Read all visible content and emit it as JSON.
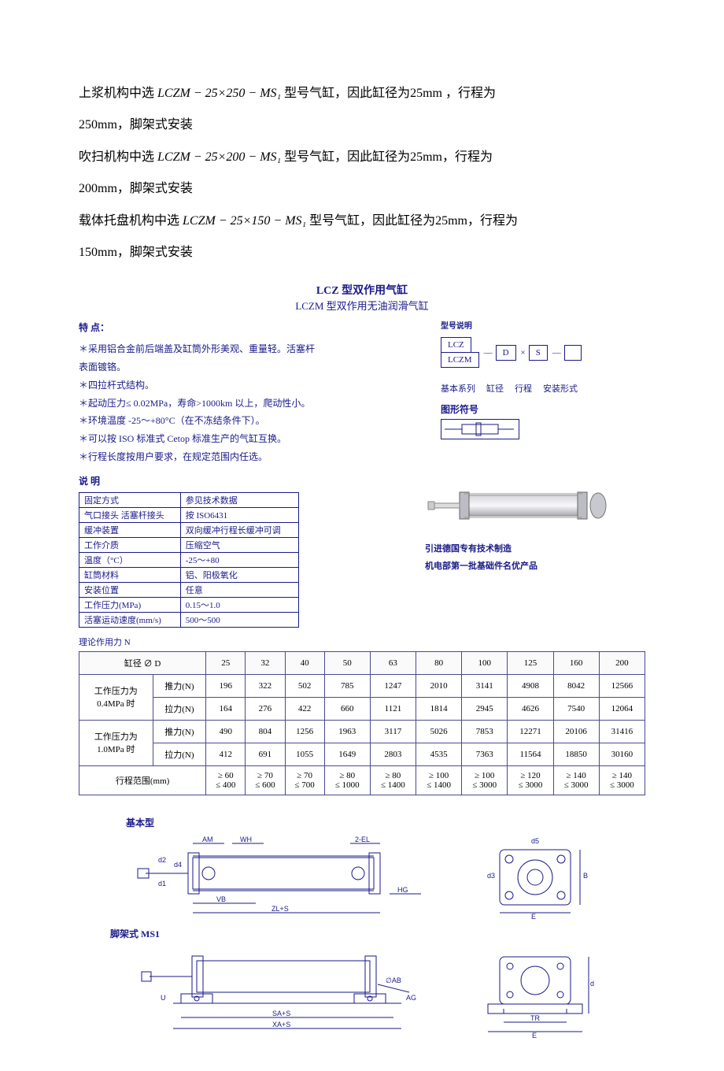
{
  "intro": {
    "line1_pre": "上浆机构中选 ",
    "line1_model": "LCZM − 25×250 − MS₁",
    "line1_post": " 型号气缸，因此缸径为25mm ，行程为",
    "line1b": "250mm，脚架式安装",
    "line2_pre": "吹扫机构中选 ",
    "line2_model": "LCZM − 25×200 − MS₁",
    "line2_post": " 型号气缸，因此缸径为25mm，行程为",
    "line2b": "200mm，脚架式安装",
    "line3_pre": "载体托盘机构中选 ",
    "line3_model": "LCZM − 25×150 − MS₁",
    "line3_post": " 型号气缸，因此缸径为25mm，行程为",
    "line3b": "150mm，脚架式安装"
  },
  "section": {
    "title1": "LCZ 型双作用气缸",
    "title2": "LCZM 型双作用无油润滑气缸"
  },
  "features": {
    "header": "特 点：",
    "items": [
      "＊采用铝合金前后端盖及缸筒外形美观、重量轻。活塞杆",
      "表面镀铬。",
      "＊四拉杆式结构。",
      "＊起动压力≤ 0.02MPa，寿命>1000km 以上，爬动性小。",
      "＊环境温度 -25～+80°C（在不冻结条件下）。",
      "＊可以按 ISO 标准式 Cetop 标准生产的气缸互换。",
      "＊行程长度按用户要求，在规定范围内任选。"
    ]
  },
  "model_desc": {
    "header": "型号说明",
    "box1a": "LCZ",
    "box1b": "LCZM",
    "boxD": "D",
    "boxS": "S",
    "cross": "×",
    "dash": "—",
    "labels": [
      "基本系列",
      "缸径",
      "行程",
      "安装形式"
    ],
    "symbol_header": "图形符号"
  },
  "spec": {
    "header": "说 明",
    "rows": [
      [
        "固定方式",
        "参见技术数据"
      ],
      [
        "气口接头 活塞杆接头",
        "按 ISO6431"
      ],
      [
        "缓冲装置",
        "双向缓冲行程长缓冲可调"
      ],
      [
        "工作介质",
        "压缩空气"
      ],
      [
        "温度（°C）",
        "-25～+80"
      ],
      [
        "缸筒材料",
        "铝、阳极氧化"
      ],
      [
        "安装位置",
        "任意"
      ],
      [
        "工作压力(MPa)",
        "0.15～1.0"
      ],
      [
        "活塞运动速度(mm/s)",
        "500～500"
      ]
    ],
    "right_caption1": "引进德国专有技术制造",
    "right_caption2": "机电部第一批基础件名优产品"
  },
  "force": {
    "caption": "理论作用力 N",
    "dia_header": "缸径 ∅ D",
    "diameters": [
      "25",
      "32",
      "40",
      "50",
      "63",
      "80",
      "100",
      "125",
      "160",
      "200"
    ],
    "groups": [
      {
        "label": "工作压力为\n0.4MPa 时",
        "rows": [
          {
            "name": "推力(N)",
            "vals": [
              "196",
              "322",
              "502",
              "785",
              "1247",
              "2010",
              "3141",
              "4908",
              "8042",
              "12566"
            ]
          },
          {
            "name": "拉力(N)",
            "vals": [
              "164",
              "276",
              "422",
              "660",
              "1121",
              "1814",
              "2945",
              "4626",
              "7540",
              "12064"
            ]
          }
        ]
      },
      {
        "label": "工作压力为\n1.0MPa 时",
        "rows": [
          {
            "name": "推力(N)",
            "vals": [
              "490",
              "804",
              "1256",
              "1963",
              "3117",
              "5026",
              "7853",
              "12271",
              "20106",
              "31416"
            ]
          },
          {
            "name": "拉力(N)",
            "vals": [
              "412",
              "691",
              "1055",
              "1649",
              "2803",
              "4535",
              "7363",
              "11564",
              "18850",
              "30160"
            ]
          }
        ]
      }
    ],
    "stroke_label": "行程范围(mm)",
    "stroke_vals": [
      "≥ 60\n≤ 400",
      "≥ 70\n≤ 600",
      "≥ 70\n≤ 700",
      "≥ 80\n≤ 1000",
      "≥ 80\n≤ 1400",
      "≥ 100\n≤ 1400",
      "≥ 100\n≤ 3000",
      "≥ 120\n≤ 3000",
      "≥ 140\n≤ 3000",
      "≥ 140\n≤ 3000"
    ]
  },
  "dwg": {
    "basic": "基本型",
    "ms1": "脚架式 MS1",
    "dim_labels_basic": [
      "AM",
      "WH",
      "2-EL",
      "VB",
      "ZL+S",
      "HG",
      "d5",
      "d1",
      "d2",
      "d4",
      "d3",
      "E",
      "B"
    ],
    "dim_labels_ms1": [
      "SA+S",
      "XA+S",
      "∅AB",
      "AG",
      "TR",
      "E",
      "d"
    ]
  },
  "colors": {
    "text_blue": "#1a1a8a",
    "border": "#4a4a90",
    "bg": "#ffffff"
  }
}
